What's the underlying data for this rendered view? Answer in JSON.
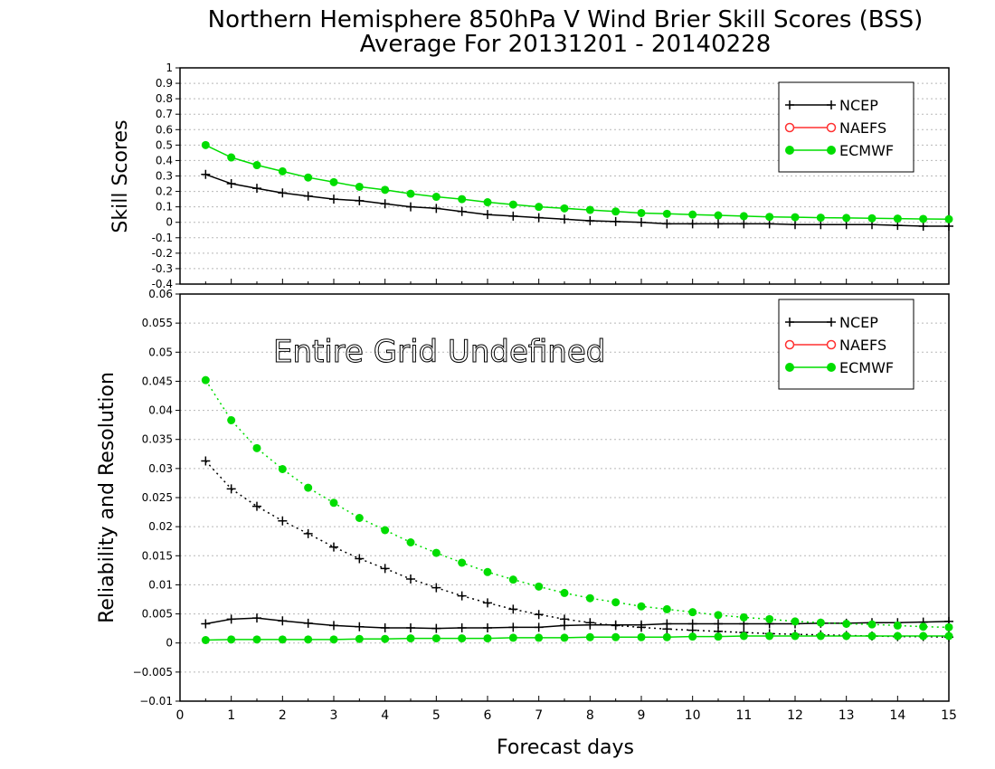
{
  "title": "Northern Hemisphere 850hPa V Wind Brier Skill Scores (BSS)",
  "subtitle": "Average For 20131201 - 20140228",
  "xlabel": "Forecast days",
  "colors": {
    "NCEP": "#000000",
    "NAEFS": "#ff3030",
    "ECMWF": "#00dd00"
  },
  "chart_data": [
    {
      "type": "line",
      "ylabel": "Skill Scores",
      "xlim": [
        0,
        15
      ],
      "ylim": [
        -0.4,
        1
      ],
      "yticks": [
        -0.4,
        -0.3,
        -0.2,
        -0.1,
        0,
        0.1,
        0.2,
        0.3,
        0.4,
        0.5,
        0.6,
        0.7,
        0.8,
        0.9,
        1
      ],
      "ytick_labels": [
        "-0.4",
        "-0.3",
        "-0.2",
        "-0.1",
        "0",
        "0.1",
        "0.2",
        "0.3",
        "0.4",
        "0.5",
        "0.6",
        "0.7",
        "0.8",
        "0.9",
        "1"
      ],
      "xticks": [
        0,
        1,
        2,
        3,
        4,
        5,
        6,
        7,
        8,
        9,
        10,
        11,
        12,
        13,
        14,
        15
      ],
      "grid": true,
      "legend": {
        "position": "top-right",
        "entries": [
          "NCEP",
          "NAEFS",
          "ECMWF"
        ]
      },
      "x": [
        0.5,
        1,
        1.5,
        2,
        2.5,
        3,
        3.5,
        4,
        4.5,
        5,
        5.5,
        6,
        6.5,
        7,
        7.5,
        8,
        8.5,
        9,
        9.5,
        10,
        10.5,
        11,
        11.5,
        12,
        12.5,
        13,
        13.5,
        14,
        14.5,
        15
      ],
      "series": [
        {
          "name": "NCEP",
          "style": "solid",
          "marker": "plus",
          "values": [
            0.31,
            0.25,
            0.22,
            0.19,
            0.17,
            0.15,
            0.14,
            0.12,
            0.1,
            0.09,
            0.07,
            0.05,
            0.04,
            0.03,
            0.02,
            0.01,
            0.005,
            0,
            -0.01,
            -0.01,
            -0.01,
            -0.01,
            -0.01,
            -0.015,
            -0.015,
            -0.015,
            -0.015,
            -0.02,
            -0.025,
            -0.025
          ]
        },
        {
          "name": "ECMWF",
          "style": "solid",
          "marker": "dot",
          "values": [
            0.5,
            0.42,
            0.37,
            0.33,
            0.29,
            0.26,
            0.23,
            0.21,
            0.185,
            0.165,
            0.15,
            0.13,
            0.115,
            0.1,
            0.09,
            0.08,
            0.07,
            0.06,
            0.055,
            0.05,
            0.045,
            0.04,
            0.035,
            0.033,
            0.03,
            0.028,
            0.026,
            0.024,
            0.022,
            0.02
          ]
        }
      ]
    },
    {
      "type": "line",
      "ylabel": "Reliability and Resolution",
      "annotation": "Entire Grid Undefined",
      "xlim": [
        0,
        15
      ],
      "ylim": [
        -0.01,
        0.06
      ],
      "yticks": [
        -0.01,
        -0.005,
        0,
        0.005,
        0.01,
        0.015,
        0.02,
        0.025,
        0.03,
        0.035,
        0.04,
        0.045,
        0.05,
        0.055,
        0.06
      ],
      "ytick_labels": [
        "−0.01",
        "−0.005",
        "0",
        "0.005",
        "0.01",
        "0.015",
        "0.02",
        "0.025",
        "0.03",
        "0.035",
        "0.04",
        "0.045",
        "0.05",
        "0.055",
        "0.06"
      ],
      "xticks": [
        0,
        1,
        2,
        3,
        4,
        5,
        6,
        7,
        8,
        9,
        10,
        11,
        12,
        13,
        14,
        15
      ],
      "grid": true,
      "legend": {
        "position": "top-right",
        "entries": [
          "NCEP",
          "NAEFS",
          "ECMWF"
        ]
      },
      "x": [
        0.5,
        1,
        1.5,
        2,
        2.5,
        3,
        3.5,
        4,
        4.5,
        5,
        5.5,
        6,
        6.5,
        7,
        7.5,
        8,
        8.5,
        9,
        9.5,
        10,
        10.5,
        11,
        11.5,
        12,
        12.5,
        13,
        13.5,
        14,
        14.5,
        15
      ],
      "series": [
        {
          "name": "NCEP",
          "quantity": "resolution",
          "style": "dotted",
          "marker": "plus",
          "values": [
            0.0313,
            0.0265,
            0.0235,
            0.021,
            0.0188,
            0.0165,
            0.0145,
            0.0128,
            0.011,
            0.0095,
            0.0081,
            0.0069,
            0.0058,
            0.0049,
            0.0041,
            0.0035,
            0.003,
            0.0027,
            0.0024,
            0.0022,
            0.002,
            0.0018,
            0.0016,
            0.0015,
            0.0014,
            0.0013,
            0.0012,
            0.0011,
            0.0011,
            0.001
          ]
        },
        {
          "name": "NCEP",
          "quantity": "reliability",
          "style": "solid",
          "marker": "plus",
          "values": [
            0.0033,
            0.0041,
            0.0043,
            0.0038,
            0.0034,
            0.003,
            0.0028,
            0.0026,
            0.0026,
            0.0025,
            0.0026,
            0.0026,
            0.0027,
            0.0027,
            0.003,
            0.0031,
            0.0031,
            0.0031,
            0.0033,
            0.0033,
            0.0033,
            0.0033,
            0.0033,
            0.0033,
            0.0034,
            0.0034,
            0.0035,
            0.0035,
            0.0036,
            0.0037
          ]
        },
        {
          "name": "ECMWF",
          "quantity": "resolution",
          "style": "dotted",
          "marker": "dot",
          "values": [
            0.0452,
            0.0383,
            0.0335,
            0.0299,
            0.0267,
            0.0241,
            0.0215,
            0.0194,
            0.0173,
            0.0155,
            0.0138,
            0.0122,
            0.0109,
            0.0097,
            0.0086,
            0.0077,
            0.007,
            0.0063,
            0.0058,
            0.0053,
            0.0048,
            0.0044,
            0.0041,
            0.0037,
            0.0035,
            0.0033,
            0.0032,
            0.003,
            0.0028,
            0.0027
          ]
        },
        {
          "name": "ECMWF",
          "quantity": "reliability",
          "style": "solid",
          "marker": "dot",
          "values": [
            0.0005,
            0.0006,
            0.0006,
            0.0006,
            0.0006,
            0.0006,
            0.0007,
            0.0007,
            0.0008,
            0.0008,
            0.0008,
            0.0008,
            0.0009,
            0.0009,
            0.0009,
            0.001,
            0.001,
            0.001,
            0.001,
            0.0011,
            0.0011,
            0.0012,
            0.0012,
            0.0012,
            0.0012,
            0.0012,
            0.0012,
            0.0012,
            0.0012,
            0.0012
          ]
        }
      ]
    }
  ]
}
